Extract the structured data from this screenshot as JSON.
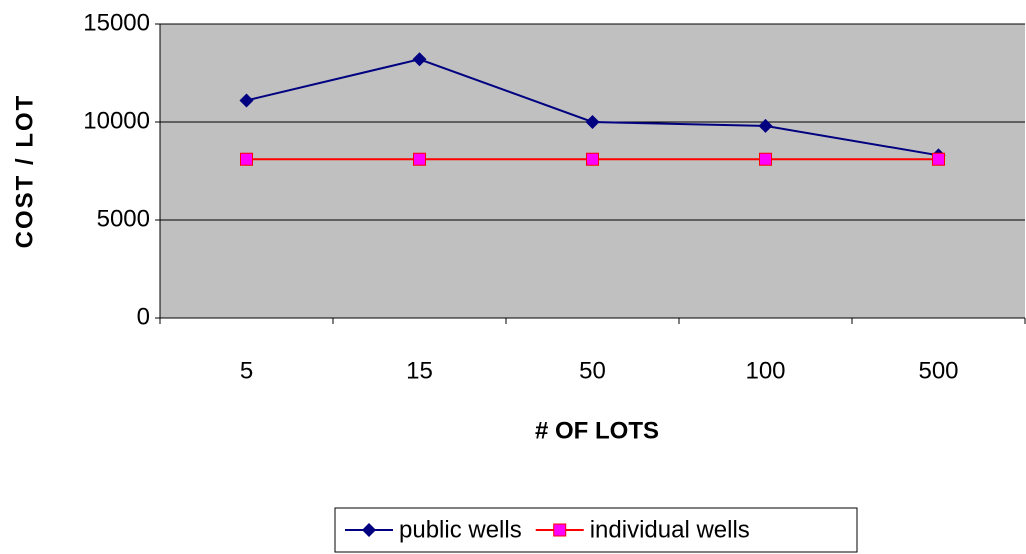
{
  "chart_data": {
    "type": "line",
    "categories": [
      "5",
      "15",
      "50",
      "100",
      "500"
    ],
    "x_label": "# OF LOTS",
    "y_label": "COST / LOT",
    "series": [
      {
        "name": "public wells",
        "color": "#000080",
        "marker": "diamond",
        "values": [
          11100,
          13200,
          10000,
          9800,
          8300
        ]
      },
      {
        "name": "individual wells",
        "color": "#ff0000",
        "marker": "square",
        "marker_color": "#ff00ff",
        "values": [
          8100,
          8100,
          8100,
          8100,
          8100
        ]
      }
    ],
    "ylim": [
      0,
      15000
    ],
    "yticks": [
      0,
      5000,
      10000,
      15000
    ],
    "grid": true,
    "legend": "bottom"
  }
}
